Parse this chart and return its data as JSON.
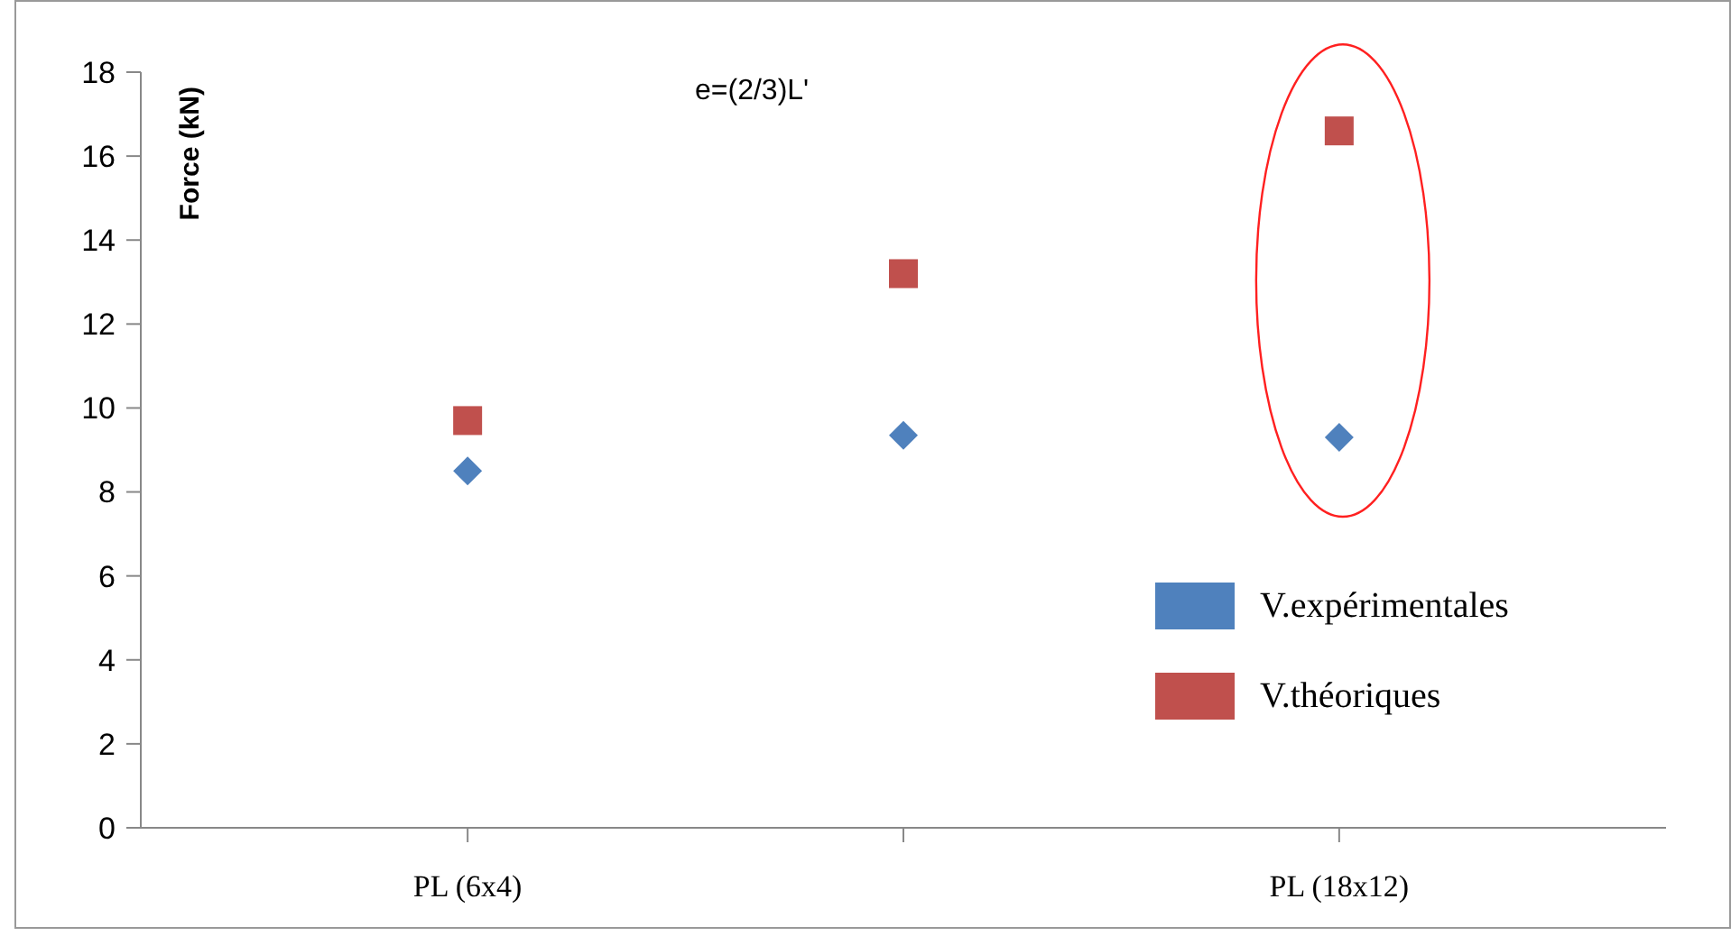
{
  "chart_data": {
    "type": "scatter",
    "ylabel": "Force (kN)",
    "annotations": [
      "e=(2/3)L'"
    ],
    "categories": [
      "PL (6x4)",
      null,
      "PL (18x12)"
    ],
    "ylim": [
      0,
      18
    ],
    "yticks": [
      0,
      2,
      4,
      6,
      8,
      10,
      12,
      14,
      16,
      18
    ],
    "grid": false,
    "legend": "bottom right",
    "series": [
      {
        "name": "V.expérimentales",
        "color": "#4f81bd",
        "marker": "diamond",
        "values": [
          8.5,
          9.35,
          9.3
        ]
      },
      {
        "name": "V.théoriques",
        "color": "#c0504d",
        "marker": "square",
        "values": [
          9.7,
          13.2,
          16.6
        ]
      }
    ]
  }
}
